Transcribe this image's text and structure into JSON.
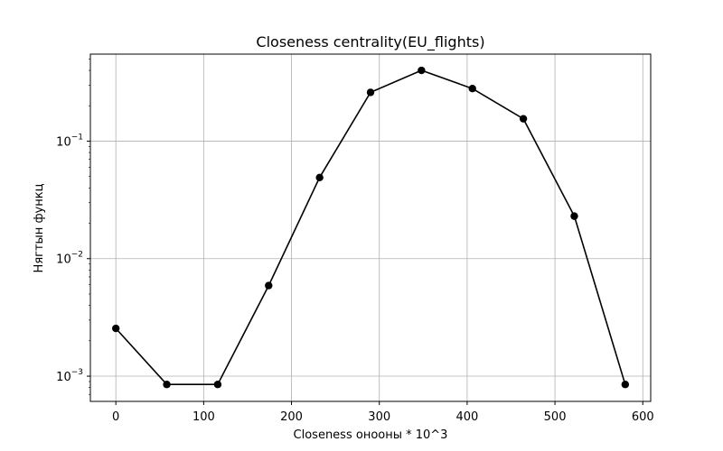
{
  "chart_data": {
    "type": "line",
    "title": "Closeness centrality(EU_flights)",
    "xlabel": "Closeness онооны * 10^3",
    "ylabel": "Нягтын функц",
    "x": [
      0,
      58,
      116,
      174,
      232,
      290,
      348,
      406,
      464,
      522,
      580
    ],
    "series": [
      {
        "values": [
          0.00255,
          0.00085,
          0.00085,
          0.0059,
          0.049,
          0.26,
          0.4,
          0.28,
          0.155,
          0.023,
          0.00085
        ],
        "color": "#000000",
        "marker": "circle"
      }
    ],
    "xlim": [
      -29,
      609
    ],
    "ylim": [
      0.00061,
      0.55
    ],
    "yscale": "log",
    "xticks": [
      0,
      100,
      200,
      300,
      400,
      500,
      600
    ],
    "yticks": [
      0.001,
      0.01,
      0.1
    ],
    "ytick_labels": [
      {
        "base": "10",
        "exp": "−3"
      },
      {
        "base": "10",
        "exp": "−2"
      },
      {
        "base": "10",
        "exp": "−1"
      }
    ],
    "grid": true
  }
}
